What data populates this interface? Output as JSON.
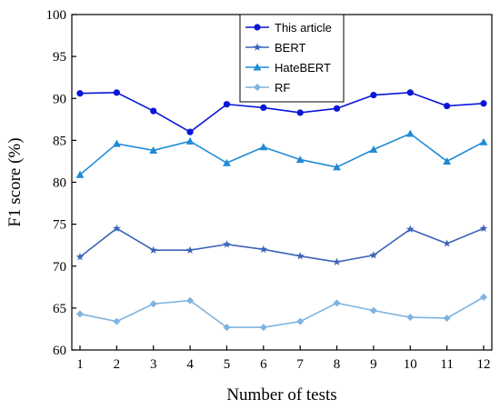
{
  "chart_data": {
    "type": "line",
    "xlabel": "Number of tests",
    "ylabel": "F1 score (%)",
    "x": [
      1,
      2,
      3,
      4,
      5,
      6,
      7,
      8,
      9,
      10,
      11,
      12
    ],
    "xlim": [
      1,
      12
    ],
    "ylim": [
      60,
      100
    ],
    "yticks": [
      60,
      65,
      70,
      75,
      80,
      85,
      90,
      95,
      100
    ],
    "grid": false,
    "legend_position": "top-center",
    "series": [
      {
        "name": "This article",
        "color": "#0a16d8",
        "marker": "circle",
        "values": [
          90.6,
          90.7,
          88.5,
          86.0,
          89.3,
          88.9,
          88.3,
          88.8,
          90.4,
          90.7,
          89.1,
          89.4
        ]
      },
      {
        "name": "BERT",
        "color": "#3a63b8",
        "marker": "star",
        "values": [
          71.1,
          74.5,
          71.9,
          71.9,
          72.6,
          72.0,
          71.2,
          70.5,
          71.3,
          74.4,
          72.7,
          74.5
        ]
      },
      {
        "name": "HateBERT",
        "color": "#1f8ad6",
        "marker": "triangle",
        "values": [
          80.9,
          84.6,
          83.8,
          84.9,
          82.3,
          84.2,
          82.7,
          81.8,
          83.9,
          85.8,
          82.5,
          84.8
        ]
      },
      {
        "name": "RF",
        "color": "#7fb3e0",
        "marker": "diamond",
        "values": [
          64.3,
          63.4,
          65.5,
          65.9,
          62.7,
          62.7,
          63.4,
          65.6,
          64.7,
          63.9,
          63.8,
          66.3
        ]
      }
    ]
  }
}
